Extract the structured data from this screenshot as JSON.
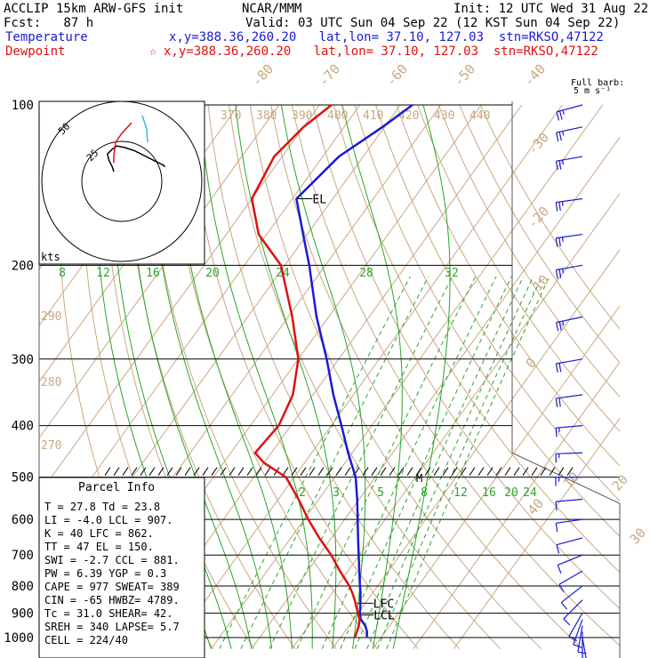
{
  "header": {
    "model": "ACCLIP 15km ARW-GFS init",
    "fcst": "Fcst:   87 h",
    "center": "NCAR/MMM",
    "init": "Init: 12 UTC Wed 31 Aug 22",
    "valid": "Valid: 03 UTC Sun 04 Sep 22 (12 KST Sun 04 Sep 22)",
    "temp_label": "Temperature",
    "dew_label": "Dewpoint",
    "temp_loc": "x,y=388.36,260.20   lat,lon= 37.10, 127.03  stn=RKSO,47122",
    "dew_loc": "x,y=388.36,260.20   lat,lon= 37.10, 127.03  stn=RKSO,47122",
    "dew_marker": "☆",
    "temp_color": "#1a1ad6",
    "dew_color": "#e01010"
  },
  "wind_legend": {
    "line1": "Full barb:",
    "line2": "5 m s⁻¹"
  },
  "hodograph": {
    "unit": "kts",
    "rings": [
      "25",
      "50"
    ]
  },
  "parcel": {
    "title": "Parcel Info",
    "rows": [
      "T    =   27.8  Td =  23.8",
      "LI   =   -4.0  LCL =  907.",
      "K    =    40  LFC =  862.",
      "TT   =    47  EL  =  150.",
      "SWI  =   -2.7  CCL =  881.",
      "PW   =   6.39  YGP =   0.3",
      "CAPE =   977  SWEAT=  389",
      "CIN  =   -65  HWBZ= 4789.",
      "Tc   =  31.0  SHEAR=  42.",
      "SREH =   340  LAPSE=   5.7",
      "CELL = 224/40"
    ]
  },
  "level_labels": {
    "el": "EL",
    "lfc": "LFC",
    "lcl": "LCL",
    "m": "M"
  },
  "chart_data": {
    "type": "line",
    "xlabel": "",
    "ylabel": "",
    "pressure_ticks": [
      100,
      200,
      300,
      400,
      500,
      600,
      700,
      800,
      900,
      1000
    ],
    "isotherm_labels": [
      "-80",
      "-70",
      "-60",
      "-50",
      "-40",
      "-30",
      "-20",
      "-10",
      "0",
      "10",
      "20",
      "30",
      "40"
    ],
    "theta_labels": [
      "370",
      "380",
      "390",
      "400",
      "410",
      "420",
      "430",
      "440"
    ],
    "theta_left_labels": [
      "290",
      "280",
      "270"
    ],
    "mixing_ratio_upper": [
      "8",
      "12",
      "16",
      "20",
      "24",
      "28",
      "32"
    ],
    "mixing_ratio_lower": [
      "2",
      "3",
      "5",
      "8",
      "12",
      "16",
      "20",
      "24"
    ],
    "series": [
      {
        "name": "Temperature",
        "color": "#1a1ad6",
        "p": [
          1000,
          975,
          950,
          925,
          900,
          875,
          850,
          825,
          800,
          750,
          700,
          650,
          600,
          550,
          500,
          450,
          400,
          350,
          300,
          250,
          200,
          175,
          150,
          125,
          110,
          100
        ],
        "t": [
          26.5,
          25.5,
          24.0,
          21.8,
          20.4,
          19.4,
          18.2,
          17.0,
          15.6,
          12.8,
          9.8,
          6.6,
          3.2,
          -0.5,
          -4.8,
          -11.0,
          -17.5,
          -25.0,
          -33.0,
          -43.0,
          -54.0,
          -61.0,
          -69.0,
          -66.0,
          -60.5,
          -57.0
        ]
      },
      {
        "name": "Dewpoint",
        "color": "#e01010",
        "p": [
          1000,
          975,
          950,
          925,
          900,
          875,
          850,
          825,
          800,
          750,
          700,
          650,
          600,
          550,
          500,
          470,
          450,
          400,
          350,
          300,
          250,
          200,
          175,
          150,
          125,
          110,
          100
        ],
        "td": [
          23.5,
          23.0,
          22.4,
          21.5,
          20.0,
          18.4,
          16.8,
          15.0,
          13.0,
          8.0,
          3.0,
          -3.0,
          -9.0,
          -15.0,
          -22.0,
          -30.0,
          -34.0,
          -33.0,
          -35.0,
          -40.0,
          -49.0,
          -61.0,
          -72.0,
          -80.0,
          -82.0,
          -80.0,
          -77.0
        ]
      }
    ],
    "wind_barbs": {
      "note": "direction deg, speed m/s",
      "p": [
        100,
        110,
        125,
        150,
        175,
        200,
        250,
        300,
        350,
        400,
        450,
        500,
        550,
        600,
        650,
        700,
        750,
        800,
        850,
        900,
        925,
        950,
        975,
        1000
      ],
      "dir": [
        255,
        258,
        260,
        262,
        262,
        260,
        258,
        260,
        262,
        265,
        268,
        270,
        265,
        262,
        255,
        248,
        240,
        232,
        225,
        210,
        200,
        190,
        180,
        170
      ],
      "spd": [
        24,
        25,
        26,
        27,
        27,
        26,
        24,
        22,
        20,
        17,
        15,
        13,
        12,
        11,
        10,
        9,
        8,
        8,
        9,
        10,
        10,
        8,
        6,
        4
      ]
    },
    "hodograph_trace": {
      "u": [
        -5,
        -6,
        -8,
        -9,
        -6,
        -3,
        2,
        8,
        14,
        20,
        24,
        26,
        27
      ],
      "v": [
        -5,
        -2,
        2,
        6,
        9,
        11,
        10,
        8,
        5,
        2,
        0,
        -1,
        -2
      ]
    }
  }
}
